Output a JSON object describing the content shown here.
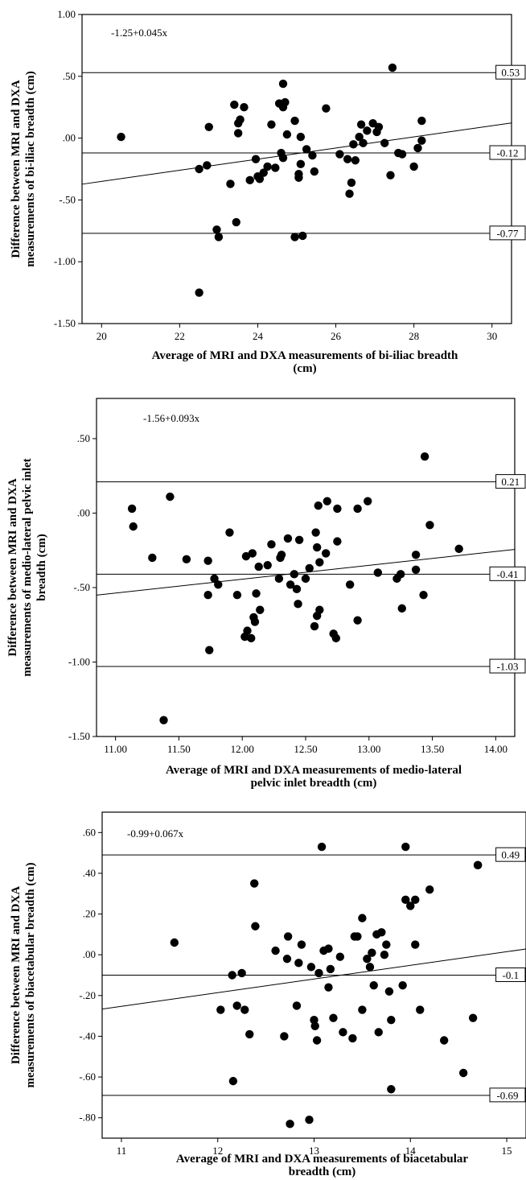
{
  "chart_data": [
    {
      "type": "scatter",
      "equation": "-1.25+0.045x",
      "xlabel_lines": [
        "Average of MRI and DXA measurements of bi-iliac breadth",
        "(cm)"
      ],
      "ylabel_lines": [
        "Difference between MRI and DXA",
        "measurements of bi-iliac breadth (cm)"
      ],
      "xlim": [
        19.5,
        30.5
      ],
      "ylim": [
        -1.5,
        1.0
      ],
      "xticks": [
        {
          "v": 20,
          "label": "20"
        },
        {
          "v": 22,
          "label": "22"
        },
        {
          "v": 24,
          "label": "24"
        },
        {
          "v": 26,
          "label": "26"
        },
        {
          "v": 28,
          "label": "28"
        },
        {
          "v": 30,
          "label": "30"
        }
      ],
      "yticks": [
        {
          "v": 1.0,
          "label": "1.00"
        },
        {
          "v": 0.5,
          "label": ".50"
        },
        {
          "v": 0.0,
          "label": ".00"
        },
        {
          "v": -0.5,
          "label": "-.50"
        },
        {
          "v": -1.0,
          "label": "-1.00"
        },
        {
          "v": -1.5,
          "label": "-1.50"
        }
      ],
      "reference_lines": [
        {
          "value": 0.53,
          "label": "0.53"
        },
        {
          "value": -0.12,
          "label": "-0.12"
        },
        {
          "value": -0.77,
          "label": "-0.77"
        }
      ],
      "regression": {
        "intercept": -1.25,
        "slope": 0.045
      },
      "grid": false,
      "points": [
        [
          20.5,
          0.01
        ],
        [
          22.5,
          -0.25
        ],
        [
          22.5,
          -1.25
        ],
        [
          22.7,
          -0.22
        ],
        [
          22.75,
          0.09
        ],
        [
          22.95,
          -0.74
        ],
        [
          23.0,
          -0.8
        ],
        [
          23.3,
          -0.37
        ],
        [
          23.4,
          0.27
        ],
        [
          23.45,
          -0.68
        ],
        [
          23.5,
          0.04
        ],
        [
          23.5,
          0.12
        ],
        [
          23.55,
          0.15
        ],
        [
          23.65,
          0.25
        ],
        [
          23.8,
          -0.34
        ],
        [
          23.95,
          -0.17
        ],
        [
          24.0,
          -0.31
        ],
        [
          24.05,
          -0.33
        ],
        [
          24.15,
          -0.28
        ],
        [
          24.25,
          -0.23
        ],
        [
          24.35,
          0.11
        ],
        [
          24.45,
          -0.24
        ],
        [
          24.55,
          0.28
        ],
        [
          24.6,
          -0.12
        ],
        [
          24.65,
          0.25
        ],
        [
          24.65,
          -0.16
        ],
        [
          24.65,
          0.44
        ],
        [
          24.7,
          0.29
        ],
        [
          24.75,
          0.03
        ],
        [
          24.95,
          0.14
        ],
        [
          24.95,
          -0.8
        ],
        [
          25.05,
          -0.29
        ],
        [
          25.05,
          -0.32
        ],
        [
          25.1,
          0.01
        ],
        [
          25.1,
          -0.21
        ],
        [
          25.15,
          -0.79
        ],
        [
          25.25,
          -0.09
        ],
        [
          25.4,
          -0.14
        ],
        [
          25.45,
          -0.27
        ],
        [
          25.75,
          0.24
        ],
        [
          26.1,
          -0.13
        ],
        [
          26.3,
          -0.17
        ],
        [
          26.35,
          -0.45
        ],
        [
          26.4,
          -0.36
        ],
        [
          26.45,
          -0.05
        ],
        [
          26.5,
          -0.18
        ],
        [
          26.6,
          0.01
        ],
        [
          26.65,
          0.11
        ],
        [
          26.7,
          -0.04
        ],
        [
          26.8,
          0.06
        ],
        [
          26.95,
          0.12
        ],
        [
          27.05,
          0.05
        ],
        [
          27.1,
          0.09
        ],
        [
          27.25,
          -0.04
        ],
        [
          27.4,
          -0.3
        ],
        [
          27.45,
          0.57
        ],
        [
          27.6,
          -0.12
        ],
        [
          27.7,
          -0.13
        ],
        [
          28.0,
          -0.23
        ],
        [
          28.1,
          -0.08
        ],
        [
          28.2,
          -0.02
        ],
        [
          28.2,
          0.14
        ]
      ]
    },
    {
      "type": "scatter",
      "equation": "-1.56+0.093x",
      "xlabel_lines": [
        "Average of MRI and DXA measurements of medio-lateral",
        "pelvic inlet breadth (cm)"
      ],
      "ylabel_lines": [
        "Difference between MRI and DXA",
        "measurements of medio-lateral pelvic inlet",
        "breadth (cm)"
      ],
      "xlim": [
        10.85,
        14.15
      ],
      "ylim": [
        -1.5,
        0.77
      ],
      "xticks": [
        {
          "v": 11.0,
          "label": "11.00"
        },
        {
          "v": 11.5,
          "label": "11.50"
        },
        {
          "v": 12.0,
          "label": "12.00"
        },
        {
          "v": 12.5,
          "label": "12.50"
        },
        {
          "v": 13.0,
          "label": "13.00"
        },
        {
          "v": 13.5,
          "label": "13.50"
        },
        {
          "v": 14.0,
          "label": "14.00"
        }
      ],
      "yticks": [
        {
          "v": 0.5,
          "label": ".50"
        },
        {
          "v": 0.0,
          "label": ".00"
        },
        {
          "v": -0.5,
          "label": "-.50"
        },
        {
          "v": -1.0,
          "label": "-1.00"
        },
        {
          "v": -1.5,
          "label": "-1.50"
        }
      ],
      "reference_lines": [
        {
          "value": 0.21,
          "label": "0.21"
        },
        {
          "value": -0.41,
          "label": "-0.41"
        },
        {
          "value": -1.03,
          "label": "-1.03"
        }
      ],
      "regression": {
        "intercept": -1.56,
        "slope": 0.093
      },
      "grid": false,
      "points": [
        [
          11.13,
          0.03
        ],
        [
          11.14,
          -0.09
        ],
        [
          11.29,
          -0.3
        ],
        [
          11.38,
          -1.39
        ],
        [
          11.43,
          0.11
        ],
        [
          11.56,
          -0.31
        ],
        [
          11.73,
          -0.32
        ],
        [
          11.73,
          -0.55
        ],
        [
          11.74,
          -0.92
        ],
        [
          11.78,
          -0.44
        ],
        [
          11.81,
          -0.48
        ],
        [
          11.9,
          -0.13
        ],
        [
          11.96,
          -0.55
        ],
        [
          12.02,
          -0.83
        ],
        [
          12.03,
          -0.29
        ],
        [
          12.04,
          -0.79
        ],
        [
          12.07,
          -0.84
        ],
        [
          12.08,
          -0.27
        ],
        [
          12.09,
          -0.7
        ],
        [
          12.1,
          -0.73
        ],
        [
          12.11,
          -0.54
        ],
        [
          12.13,
          -0.36
        ],
        [
          12.14,
          -0.65
        ],
        [
          12.2,
          -0.35
        ],
        [
          12.23,
          -0.21
        ],
        [
          12.29,
          -0.44
        ],
        [
          12.3,
          -0.3
        ],
        [
          12.31,
          -0.28
        ],
        [
          12.36,
          -0.17
        ],
        [
          12.38,
          -0.48
        ],
        [
          12.41,
          -0.41
        ],
        [
          12.43,
          -0.51
        ],
        [
          12.44,
          -0.61
        ],
        [
          12.45,
          -0.18
        ],
        [
          12.5,
          -0.44
        ],
        [
          12.53,
          -0.37
        ],
        [
          12.57,
          -0.76
        ],
        [
          12.58,
          -0.13
        ],
        [
          12.59,
          -0.23
        ],
        [
          12.59,
          -0.69
        ],
        [
          12.6,
          0.05
        ],
        [
          12.61,
          -0.33
        ],
        [
          12.61,
          -0.65
        ],
        [
          12.66,
          -0.27
        ],
        [
          12.67,
          0.08
        ],
        [
          12.72,
          -0.81
        ],
        [
          12.74,
          -0.84
        ],
        [
          12.75,
          0.03
        ],
        [
          12.75,
          -0.19
        ],
        [
          12.85,
          -0.48
        ],
        [
          12.91,
          0.03
        ],
        [
          12.91,
          -0.72
        ],
        [
          12.99,
          0.08
        ],
        [
          13.07,
          -0.4
        ],
        [
          13.22,
          -0.44
        ],
        [
          13.25,
          -0.41
        ],
        [
          13.26,
          -0.64
        ],
        [
          13.37,
          -0.28
        ],
        [
          13.37,
          -0.38
        ],
        [
          13.43,
          -0.55
        ],
        [
          13.44,
          0.38
        ],
        [
          13.48,
          -0.08
        ],
        [
          13.71,
          -0.24
        ]
      ]
    },
    {
      "type": "scatter",
      "equation": "-0.99+0.067x",
      "xlabel_lines": [
        "Average of MRI and DXA measurements of biacetabular",
        "breadth (cm)"
      ],
      "ylabel_lines": [
        "Difference between MRI and DXA",
        "measurements of biacetabular breadth (cm)"
      ],
      "xlim": [
        10.8,
        15.2
      ],
      "ylim": [
        -0.9,
        0.7
      ],
      "xticks": [
        {
          "v": 11,
          "label": "11"
        },
        {
          "v": 12,
          "label": "12"
        },
        {
          "v": 13,
          "label": "13"
        },
        {
          "v": 14,
          "label": "14"
        },
        {
          "v": 15,
          "label": "15"
        }
      ],
      "yticks": [
        {
          "v": 0.6,
          "label": ".60"
        },
        {
          "v": 0.4,
          "label": ".40"
        },
        {
          "v": 0.2,
          "label": ".20"
        },
        {
          "v": 0.0,
          "label": ".00"
        },
        {
          "v": -0.2,
          "label": "-.20"
        },
        {
          "v": -0.4,
          "label": "-.40"
        },
        {
          "v": -0.6,
          "label": "-.60"
        },
        {
          "v": -0.8,
          "label": "-.80"
        }
      ],
      "reference_lines": [
        {
          "value": 0.49,
          "label": "0.49"
        },
        {
          "value": -0.1,
          "label": "-0.1"
        },
        {
          "value": -0.69,
          "label": "-0.69"
        }
      ],
      "regression": {
        "intercept": -0.99,
        "slope": 0.067
      },
      "grid": false,
      "points": [
        [
          11.55,
          0.06
        ],
        [
          12.03,
          -0.27
        ],
        [
          12.15,
          -0.1
        ],
        [
          12.16,
          -0.62
        ],
        [
          12.2,
          -0.25
        ],
        [
          12.25,
          -0.09
        ],
        [
          12.28,
          -0.27
        ],
        [
          12.33,
          -0.39
        ],
        [
          12.38,
          0.35
        ],
        [
          12.39,
          0.14
        ],
        [
          12.6,
          0.02
        ],
        [
          12.69,
          -0.4
        ],
        [
          12.72,
          -0.02
        ],
        [
          12.73,
          0.09
        ],
        [
          12.75,
          -0.83
        ],
        [
          12.82,
          -0.25
        ],
        [
          12.84,
          -0.04
        ],
        [
          12.87,
          0.05
        ],
        [
          12.95,
          -0.81
        ],
        [
          12.97,
          -0.06
        ],
        [
          13.0,
          -0.32
        ],
        [
          13.01,
          -0.35
        ],
        [
          13.03,
          -0.42
        ],
        [
          13.05,
          -0.09
        ],
        [
          13.08,
          0.53
        ],
        [
          13.1,
          0.02
        ],
        [
          13.15,
          0.03
        ],
        [
          13.15,
          -0.16
        ],
        [
          13.17,
          -0.07
        ],
        [
          13.2,
          -0.31
        ],
        [
          13.27,
          -0.01
        ],
        [
          13.3,
          -0.38
        ],
        [
          13.4,
          -0.41
        ],
        [
          13.45,
          0.09
        ],
        [
          13.5,
          -0.27
        ],
        [
          13.5,
          0.18
        ],
        [
          13.55,
          -0.02
        ],
        [
          13.58,
          -0.06
        ],
        [
          13.6,
          0.01
        ],
        [
          13.62,
          -0.15
        ],
        [
          13.65,
          0.1
        ],
        [
          13.67,
          -0.38
        ],
        [
          13.7,
          0.11
        ],
        [
          13.73,
          0.0
        ],
        [
          13.75,
          0.05
        ],
        [
          13.78,
          -0.18
        ],
        [
          13.8,
          -0.32
        ],
        [
          13.8,
          -0.66
        ],
        [
          13.92,
          -0.15
        ],
        [
          13.95,
          0.53
        ],
        [
          13.95,
          0.27
        ],
        [
          14.0,
          0.24
        ],
        [
          14.05,
          0.27
        ],
        [
          14.05,
          0.05
        ],
        [
          14.1,
          -0.27
        ],
        [
          14.2,
          0.32
        ],
        [
          14.55,
          -0.58
        ],
        [
          14.65,
          -0.31
        ],
        [
          14.7,
          0.44
        ],
        [
          14.7,
          0.44
        ],
        [
          14.35,
          -0.42
        ],
        [
          13.42,
          0.09
        ]
      ]
    }
  ]
}
